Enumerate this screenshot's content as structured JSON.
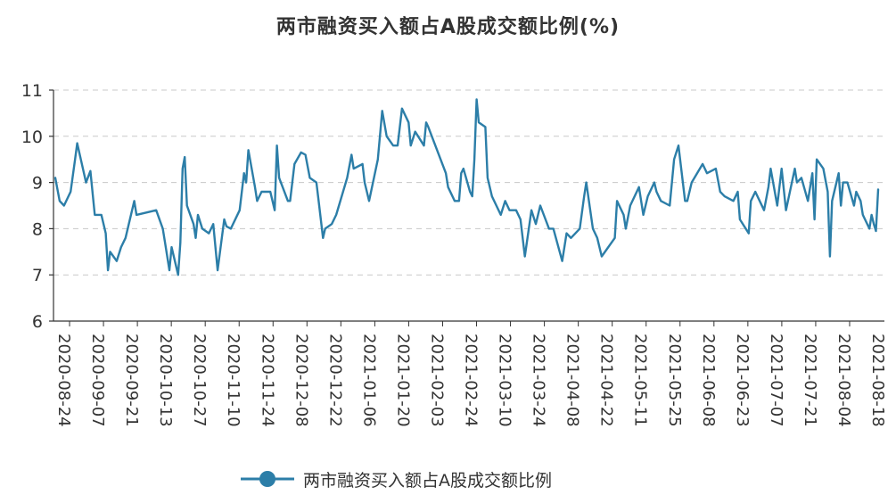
{
  "chart_data": {
    "type": "line",
    "title": "两市融资买入额占A股成交额比例(%)",
    "xlabel": "",
    "ylabel": "",
    "ylim": [
      6,
      11
    ],
    "y_ticks": [
      "6",
      "7",
      "8",
      "9",
      "10",
      "11"
    ],
    "x_tick_labels": [
      "2020-08-24",
      "2020-09-07",
      "2020-09-21",
      "2020-10-13",
      "2020-10-27",
      "2020-11-10",
      "2020-11-24",
      "2020-12-08",
      "2020-12-22",
      "2021-01-06",
      "2021-01-20",
      "2021-02-03",
      "2021-02-24",
      "2021-03-10",
      "2021-03-24",
      "2021-04-08",
      "2021-04-22",
      "2021-05-11",
      "2021-05-25",
      "2021-06-08",
      "2021-06-23",
      "2021-07-07",
      "2021-07-21",
      "2021-08-04",
      "2021-08-18"
    ],
    "grid": true,
    "legend": "bottom",
    "color": "#2c7ea8",
    "series": [
      {
        "name": "两市融资买入额占A股成交额比例",
        "anchors": [
          [
            "2020-08-24",
            9.1
          ],
          [
            "2020-08-26",
            8.6
          ],
          [
            "2020-08-28",
            8.5
          ],
          [
            "2020-08-31",
            8.8
          ],
          [
            "2020-09-02",
            9.5
          ],
          [
            "2020-09-03",
            9.85
          ],
          [
            "2020-09-07",
            9.0
          ],
          [
            "2020-09-09",
            9.25
          ],
          [
            "2020-09-11",
            8.3
          ],
          [
            "2020-09-14",
            8.3
          ],
          [
            "2020-09-16",
            7.9
          ],
          [
            "2020-09-17",
            7.1
          ],
          [
            "2020-09-18",
            7.5
          ],
          [
            "2020-09-21",
            7.3
          ],
          [
            "2020-09-23",
            7.6
          ],
          [
            "2020-09-25",
            7.8
          ],
          [
            "2020-09-29",
            8.6
          ],
          [
            "2020-09-30",
            8.3
          ],
          [
            "2020-10-09",
            8.4
          ],
          [
            "2020-10-12",
            8.0
          ],
          [
            "2020-10-13",
            7.7
          ],
          [
            "2020-10-15",
            7.1
          ],
          [
            "2020-10-16",
            7.6
          ],
          [
            "2020-10-19",
            7.0
          ],
          [
            "2020-10-20",
            7.7
          ],
          [
            "2020-10-21",
            9.3
          ],
          [
            "2020-10-22",
            9.55
          ],
          [
            "2020-10-23",
            8.5
          ],
          [
            "2020-10-26",
            8.1
          ],
          [
            "2020-10-27",
            7.8
          ],
          [
            "2020-10-28",
            8.3
          ],
          [
            "2020-10-30",
            8.0
          ],
          [
            "2020-11-02",
            7.9
          ],
          [
            "2020-11-04",
            8.1
          ],
          [
            "2020-11-06",
            7.1
          ],
          [
            "2020-11-09",
            8.2
          ],
          [
            "2020-11-10",
            8.05
          ],
          [
            "2020-11-12",
            8.0
          ],
          [
            "2020-11-16",
            8.4
          ],
          [
            "2020-11-18",
            9.2
          ],
          [
            "2020-11-19",
            9.0
          ],
          [
            "2020-11-20",
            9.7
          ],
          [
            "2020-11-23",
            8.9
          ],
          [
            "2020-11-24",
            8.6
          ],
          [
            "2020-11-26",
            8.8
          ],
          [
            "2020-11-30",
            8.8
          ],
          [
            "2020-12-02",
            8.4
          ],
          [
            "2020-12-03",
            9.8
          ],
          [
            "2020-12-04",
            9.1
          ],
          [
            "2020-12-08",
            8.6
          ],
          [
            "2020-12-09",
            8.6
          ],
          [
            "2020-12-11",
            9.4
          ],
          [
            "2020-12-14",
            9.65
          ],
          [
            "2020-12-16",
            9.6
          ],
          [
            "2020-12-18",
            9.1
          ],
          [
            "2020-12-21",
            9.0
          ],
          [
            "2020-12-22",
            8.6
          ],
          [
            "2020-12-24",
            7.8
          ],
          [
            "2020-12-25",
            8.0
          ],
          [
            "2020-12-28",
            8.1
          ],
          [
            "2020-12-30",
            8.3
          ],
          [
            "2021-01-04",
            9.1
          ],
          [
            "2021-01-06",
            9.6
          ],
          [
            "2021-01-07",
            9.3
          ],
          [
            "2021-01-11",
            9.4
          ],
          [
            "2021-01-12",
            9.0
          ],
          [
            "2021-01-14",
            8.6
          ],
          [
            "2021-01-18",
            9.5
          ],
          [
            "2021-01-20",
            10.55
          ],
          [
            "2021-01-22",
            10.0
          ],
          [
            "2021-01-25",
            9.8
          ],
          [
            "2021-01-27",
            9.8
          ],
          [
            "2021-01-29",
            10.6
          ],
          [
            "2021-02-01",
            10.3
          ],
          [
            "2021-02-02",
            9.8
          ],
          [
            "2021-02-04",
            10.1
          ],
          [
            "2021-02-08",
            9.8
          ],
          [
            "2021-02-09",
            10.3
          ],
          [
            "2021-02-10",
            10.2
          ],
          [
            "2021-02-18",
            9.2
          ],
          [
            "2021-02-19",
            8.9
          ],
          [
            "2021-02-22",
            8.6
          ],
          [
            "2021-02-24",
            8.6
          ],
          [
            "2021-02-25",
            9.2
          ],
          [
            "2021-02-26",
            9.3
          ],
          [
            "2021-03-01",
            8.8
          ],
          [
            "2021-03-02",
            8.7
          ],
          [
            "2021-03-03",
            9.5
          ],
          [
            "2021-03-04",
            10.8
          ],
          [
            "2021-03-05",
            10.3
          ],
          [
            "2021-03-08",
            10.2
          ],
          [
            "2021-03-09",
            9.1
          ],
          [
            "2021-03-11",
            8.7
          ],
          [
            "2021-03-15",
            8.3
          ],
          [
            "2021-03-17",
            8.6
          ],
          [
            "2021-03-19",
            8.4
          ],
          [
            "2021-03-22",
            8.4
          ],
          [
            "2021-03-24",
            8.2
          ],
          [
            "2021-03-26",
            7.4
          ],
          [
            "2021-03-29",
            8.4
          ],
          [
            "2021-03-31",
            8.1
          ],
          [
            "2021-04-02",
            8.5
          ],
          [
            "2021-04-06",
            8.0
          ],
          [
            "2021-04-08",
            8.0
          ],
          [
            "2021-04-12",
            7.3
          ],
          [
            "2021-04-14",
            7.9
          ],
          [
            "2021-04-16",
            7.8
          ],
          [
            "2021-04-20",
            8.0
          ],
          [
            "2021-04-22",
            8.7
          ],
          [
            "2021-04-23",
            9.0
          ],
          [
            "2021-04-26",
            8.0
          ],
          [
            "2021-04-28",
            7.8
          ],
          [
            "2021-04-30",
            7.4
          ],
          [
            "2021-05-06",
            7.8
          ],
          [
            "2021-05-07",
            8.6
          ],
          [
            "2021-05-10",
            8.3
          ],
          [
            "2021-05-11",
            8.0
          ],
          [
            "2021-05-13",
            8.5
          ],
          [
            "2021-05-17",
            8.9
          ],
          [
            "2021-05-19",
            8.3
          ],
          [
            "2021-05-21",
            8.7
          ],
          [
            "2021-05-24",
            9.0
          ],
          [
            "2021-05-25",
            8.8
          ],
          [
            "2021-05-27",
            8.6
          ],
          [
            "2021-05-31",
            8.5
          ],
          [
            "2021-06-02",
            9.5
          ],
          [
            "2021-06-04",
            9.8
          ],
          [
            "2021-06-07",
            8.6
          ],
          [
            "2021-06-08",
            8.6
          ],
          [
            "2021-06-10",
            9.0
          ],
          [
            "2021-06-15",
            9.4
          ],
          [
            "2021-06-17",
            9.2
          ],
          [
            "2021-06-21",
            9.3
          ],
          [
            "2021-06-23",
            8.8
          ],
          [
            "2021-06-25",
            8.7
          ],
          [
            "2021-06-29",
            8.6
          ],
          [
            "2021-07-01",
            8.8
          ],
          [
            "2021-07-02",
            8.2
          ],
          [
            "2021-07-06",
            7.9
          ],
          [
            "2021-07-07",
            8.6
          ],
          [
            "2021-07-09",
            8.8
          ],
          [
            "2021-07-13",
            8.4
          ],
          [
            "2021-07-15",
            8.9
          ],
          [
            "2021-07-16",
            9.3
          ],
          [
            "2021-07-19",
            8.5
          ],
          [
            "2021-07-21",
            9.3
          ],
          [
            "2021-07-23",
            8.4
          ],
          [
            "2021-07-27",
            9.3
          ],
          [
            "2021-07-28",
            9.0
          ],
          [
            "2021-07-30",
            9.1
          ],
          [
            "2021-08-02",
            8.6
          ],
          [
            "2021-08-04",
            9.2
          ],
          [
            "2021-08-05",
            8.2
          ],
          [
            "2021-08-06",
            9.5
          ],
          [
            "2021-08-09",
            9.3
          ],
          [
            "2021-08-11",
            8.8
          ],
          [
            "2021-08-12",
            7.4
          ],
          [
            "2021-08-13",
            8.6
          ],
          [
            "2021-08-16",
            9.2
          ],
          [
            "2021-08-17",
            8.5
          ],
          [
            "2021-08-18",
            9.0
          ],
          [
            "2021-08-20",
            9.0
          ],
          [
            "2021-08-23",
            8.5
          ],
          [
            "2021-08-24",
            8.8
          ],
          [
            "2021-08-26",
            8.6
          ],
          [
            "2021-08-27",
            8.3
          ],
          [
            "2021-08-30",
            8.0
          ],
          [
            "2021-08-31",
            8.3
          ],
          [
            "2021-09-01",
            8.1
          ],
          [
            "2021-09-02",
            7.95
          ],
          [
            "2021-09-03",
            8.85
          ]
        ]
      }
    ]
  }
}
